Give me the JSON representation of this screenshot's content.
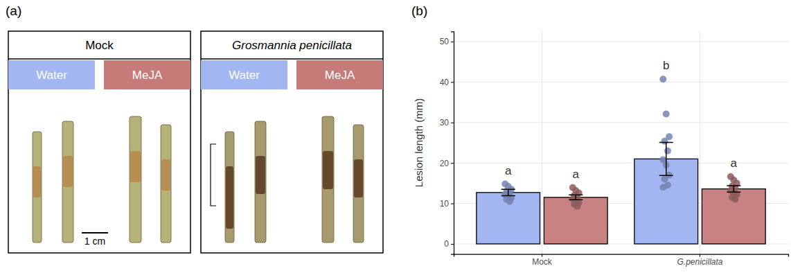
{
  "panel_a": {
    "label": "(a)",
    "boxes": [
      {
        "title": "Mock",
        "treatments": [
          "Water",
          "MeJA"
        ]
      },
      {
        "title": "Grosmannia penicillata",
        "treatments": [
          "Water",
          "MeJA"
        ]
      }
    ],
    "scale_bar": "1 cm"
  },
  "chart_data": {
    "label": "(b)",
    "type": "bar",
    "y_label": "Lesion length (mm)",
    "categories": [
      "Mock",
      "G.penicillata"
    ],
    "series": [
      {
        "color": "#a2b6f2",
        "values": [
          12.7,
          21.0
        ],
        "errors": [
          0.8,
          4.1
        ],
        "group_letters": [
          "a",
          "b"
        ],
        "points": [
          [
            14.8,
            14.2,
            13.5,
            13.0,
            12.6,
            12.2,
            11.8,
            11.3,
            11.0,
            10.5
          ],
          [
            40.7,
            32.1,
            26.5,
            25.4,
            23.0,
            20.8,
            19.5,
            17.0,
            16.0,
            14.5,
            14.0
          ]
        ]
      },
      {
        "color": "#c98282",
        "values": [
          11.5,
          13.6
        ],
        "errors": [
          0.6,
          0.8
        ],
        "group_letters": [
          "a",
          "a"
        ],
        "points": [
          [
            13.9,
            13.2,
            12.6,
            12.0,
            11.5,
            11.1,
            10.6,
            10.2,
            9.8,
            9.3
          ],
          [
            16.6,
            15.8,
            15.0,
            14.3,
            13.8,
            13.2,
            12.6,
            12.2,
            11.5,
            11.0
          ]
        ]
      }
    ],
    "ylim": [
      -2.5,
      52.5
    ],
    "yticks": [
      0,
      10,
      20,
      30,
      40,
      50
    ],
    "grid": true
  }
}
